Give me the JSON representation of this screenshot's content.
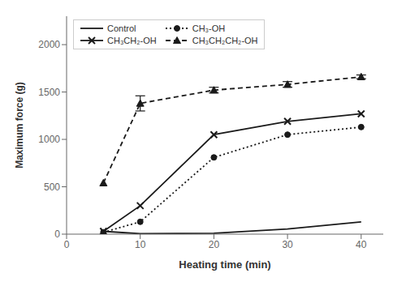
{
  "chart_data": {
    "type": "line",
    "xlabel": "Heating time (min)",
    "ylabel": "Maximum force (g)",
    "x": [
      5,
      10,
      20,
      30,
      40
    ],
    "series": [
      {
        "name": "Control",
        "color": "#1a1a1a",
        "values": [
          30,
          5,
          10,
          55,
          130
        ],
        "marker": "none",
        "line_style": "solid"
      },
      {
        "name": "CH₃-OH",
        "color": "#1a1a1a",
        "values": [
          20,
          130,
          810,
          1050,
          1130
        ],
        "marker": "circle",
        "line_style": "dotted"
      },
      {
        "name": "CH₃CH₂-OH",
        "color": "#1a1a1a",
        "values": [
          30,
          300,
          1050,
          1190,
          1270
        ],
        "marker": "x",
        "line_style": "solid"
      },
      {
        "name": "CH₃CH₂CH₂-OH",
        "color": "#1a1a1a",
        "values": [
          540,
          1380,
          1520,
          1580,
          1660
        ],
        "errors": [
          0,
          80,
          30,
          30,
          20
        ],
        "marker": "triangle",
        "line_style": "dashed"
      }
    ],
    "xlim": [
      0,
      43
    ],
    "ylim": [
      0,
      2300
    ],
    "xticks": [
      0,
      10,
      20,
      30,
      40
    ],
    "yticks": [
      0,
      500,
      1000,
      1500,
      2000
    ],
    "grid": false,
    "legend": "upper left"
  }
}
